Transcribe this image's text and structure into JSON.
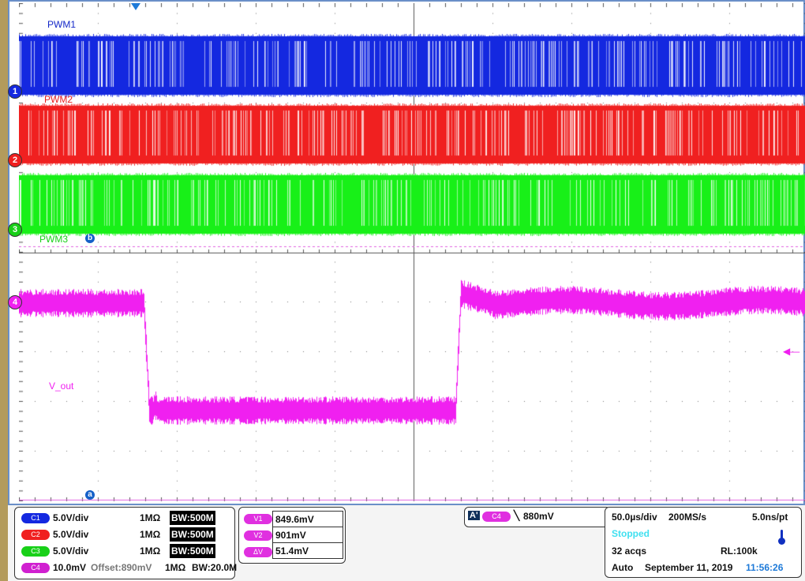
{
  "channels": {
    "c1": {
      "pill": "C1",
      "scale": "5.0V/div",
      "imp": "1MΩ",
      "bw": "BW:500M",
      "color": "#1428e0"
    },
    "c2": {
      "pill": "C2",
      "scale": "5.0V/div",
      "imp": "1MΩ",
      "bw": "BW:500M",
      "color": "#f02020"
    },
    "c3": {
      "pill": "C3",
      "scale": "5.0V/div",
      "imp": "1MΩ",
      "bw": "BW:500M",
      "color": "#18f018"
    },
    "c4": {
      "pill": "C4",
      "scale": "10.0mV",
      "offset": "Offset:890mV",
      "imp": "1MΩ",
      "bw": "BW:20.0M",
      "color": "#f020f0"
    }
  },
  "traces": {
    "pwm1": "PWM1",
    "pwm2": "PWM2",
    "pwm3": "PWM3",
    "vout": "V_out"
  },
  "markers": {
    "m1": "1",
    "m2": "2",
    "m3": "3",
    "m4": "4",
    "cursor_a": "a",
    "cursor_b": "b"
  },
  "cursors": {
    "v1_label": "V1",
    "v1": "849.6mV",
    "v2_label": "V2",
    "v2": "901mV",
    "dv_label": "ΔV",
    "dv": "51.4mV"
  },
  "trigger": {
    "mode": "A'",
    "source": "C4",
    "slope": "falling",
    "level": "880mV"
  },
  "acq": {
    "timebase": "50.0µs/div",
    "rate": "200MS/s",
    "res": "5.0ns/pt",
    "state": "Stopped",
    "acqs": "32 acqs",
    "rl": "RL:100k",
    "mode": "Auto",
    "date": "September 11, 2019",
    "time": "11:56:26"
  }
}
